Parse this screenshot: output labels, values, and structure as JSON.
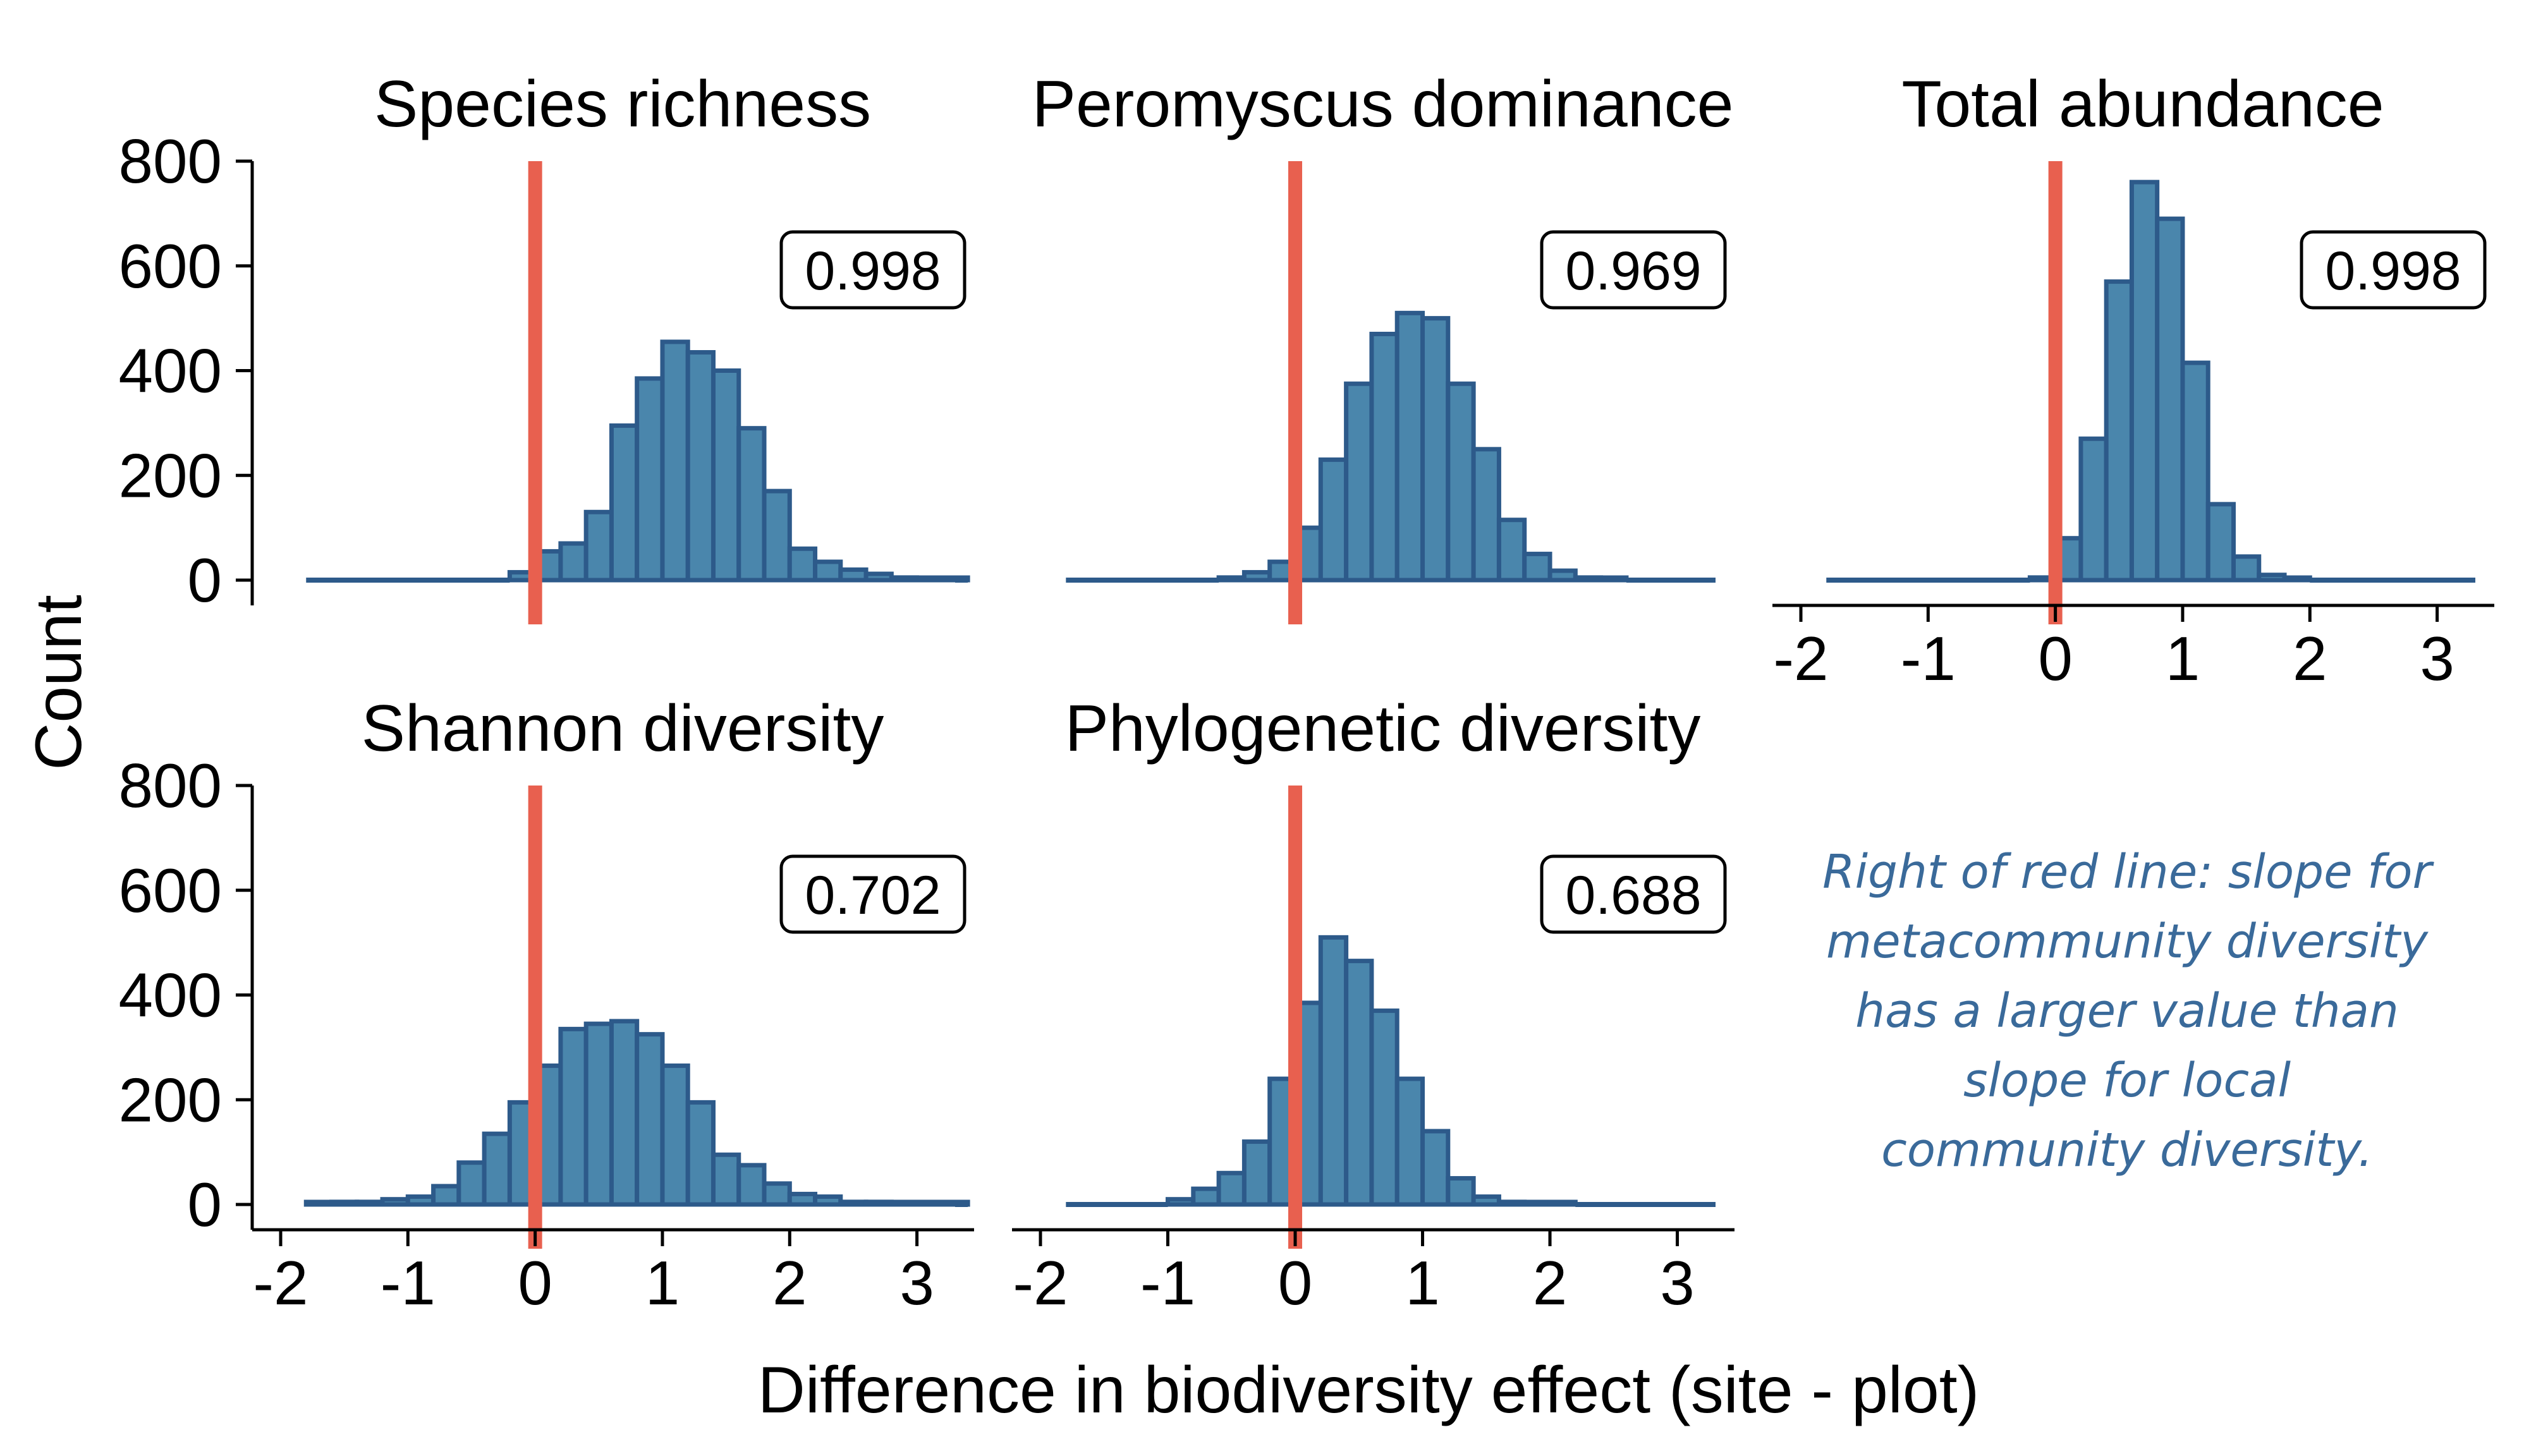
{
  "figure": {
    "xlabel": "Difference in biodiversity effect (site - plot)",
    "ylabel": "Count",
    "note_lines": [
      "Right of red line: slope for",
      "metacommunity diversity",
      "has a larger value than",
      "slope for local",
      "community diversity."
    ],
    "colors": {
      "bar_fill": "#4a86ac",
      "bar_edge": "#2d5a8a",
      "ref_line": "#e8604f",
      "note": "#3a6a9a"
    }
  },
  "chart_data": [
    {
      "type": "bar",
      "title": "Species richness",
      "annotation": "0.998",
      "reference_line_x": 0,
      "xlim": [
        -2,
        3.3
      ],
      "ylim": [
        0,
        800
      ],
      "xticks": [
        "-2",
        "-1",
        "0",
        "1",
        "2",
        "3"
      ],
      "yticks": [
        "0",
        "200",
        "400",
        "600",
        "800"
      ],
      "show_x_axis": false,
      "show_y_axis": true,
      "bin_start": -0.2,
      "bin_width": 0.2,
      "values": [
        15,
        55,
        70,
        130,
        295,
        385,
        455,
        435,
        400,
        290,
        170,
        60,
        35,
        20,
        12,
        5,
        2,
        1
      ],
      "tails": [
        [
          -1.8,
          -0.2,
          0
        ],
        [
          3.4,
          3.3,
          0
        ]
      ]
    },
    {
      "type": "bar",
      "title": "Peromyscus dominance",
      "annotation": "0.969",
      "reference_line_x": 0,
      "xlim": [
        -2,
        3.3
      ],
      "ylim": [
        0,
        800
      ],
      "xticks": [
        "-2",
        "-1",
        "0",
        "1",
        "2",
        "3"
      ],
      "yticks": [
        "0",
        "200",
        "400",
        "600",
        "800"
      ],
      "show_x_axis": false,
      "show_y_axis": false,
      "bin_start": -0.6,
      "bin_width": 0.2,
      "values": [
        5,
        15,
        35,
        100,
        230,
        375,
        470,
        510,
        500,
        375,
        250,
        115,
        50,
        18,
        5,
        1
      ],
      "tails": [
        [
          -1.8,
          -0.6,
          0
        ],
        [
          2.6,
          3.3,
          0
        ]
      ]
    },
    {
      "type": "bar",
      "title": "Total abundance",
      "annotation": "0.998",
      "reference_line_x": 0,
      "xlim": [
        -2,
        3.3
      ],
      "ylim": [
        0,
        800
      ],
      "xticks": [
        "-2",
        "-1",
        "0",
        "1",
        "2",
        "3"
      ],
      "yticks": [
        "0",
        "200",
        "400",
        "600",
        "800"
      ],
      "show_x_axis": true,
      "show_y_axis": false,
      "bin_start": -0.2,
      "bin_width": 0.2,
      "values": [
        5,
        80,
        270,
        570,
        760,
        690,
        415,
        145,
        45,
        10,
        2
      ],
      "tails": [
        [
          -1.8,
          -0.2,
          0
        ],
        [
          2.0,
          3.3,
          0
        ]
      ]
    },
    {
      "type": "bar",
      "title": "Shannon diversity",
      "annotation": "0.702",
      "reference_line_x": 0,
      "xlim": [
        -2,
        3.3
      ],
      "ylim": [
        0,
        800
      ],
      "xticks": [
        "-2",
        "-1",
        "0",
        "1",
        "2",
        "3"
      ],
      "yticks": [
        "0",
        "200",
        "400",
        "600",
        "800"
      ],
      "show_x_axis": true,
      "show_y_axis": true,
      "bin_start": -1.8,
      "bin_width": 0.2,
      "values": [
        2,
        5,
        5,
        10,
        15,
        35,
        80,
        135,
        195,
        265,
        335,
        345,
        350,
        325,
        265,
        195,
        95,
        75,
        40,
        20,
        15,
        5,
        5,
        3,
        2,
        1
      ],
      "tails": [
        [
          3.4,
          3.3,
          0
        ]
      ]
    },
    {
      "type": "bar",
      "title": "Phylogenetic diversity",
      "annotation": "0.688",
      "reference_line_x": 0,
      "xlim": [
        -2,
        3.3
      ],
      "ylim": [
        0,
        800
      ],
      "xticks": [
        "-2",
        "-1",
        "0",
        "1",
        "2",
        "3"
      ],
      "yticks": [
        "0",
        "200",
        "400",
        "600",
        "800"
      ],
      "show_x_axis": true,
      "show_y_axis": false,
      "bin_start": -1.0,
      "bin_width": 0.2,
      "values": [
        10,
        30,
        60,
        120,
        240,
        385,
        510,
        465,
        370,
        240,
        140,
        50,
        15,
        5,
        2,
        1
      ],
      "tails": [
        [
          -1.8,
          -1.0,
          0
        ],
        [
          2.2,
          3.3,
          0
        ]
      ]
    }
  ]
}
